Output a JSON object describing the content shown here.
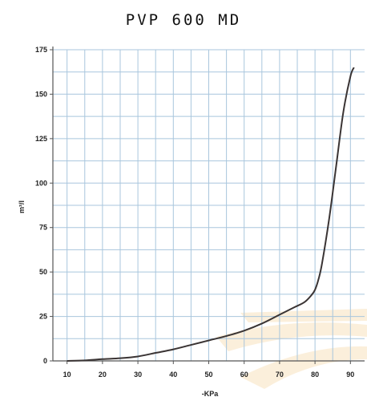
{
  "chart_data": {
    "type": "line",
    "title": "PVP 600 MD",
    "xlabel": "-KPa",
    "ylabel": "m³/l",
    "xlim": [
      6,
      94
    ],
    "ylim": [
      0,
      175
    ],
    "x_ticks": [
      10,
      20,
      30,
      40,
      50,
      60,
      70,
      80,
      90
    ],
    "x_tick_labels": [
      "10",
      "20",
      "30",
      "40",
      "50",
      "60",
      "70",
      "80",
      "90"
    ],
    "y_ticks": [
      0,
      25,
      50,
      75,
      100,
      125,
      150,
      175
    ],
    "y_tick_labels": [
      "0",
      "25",
      "50",
      "75",
      "100",
      "125",
      "150",
      "175"
    ],
    "grid": true,
    "colors": {
      "grid": "#a9c6dd",
      "line": "#3a3434",
      "axis": "#555555"
    },
    "series": [
      {
        "x": [
          10,
          15,
          20,
          25,
          30,
          35,
          40,
          45,
          50,
          55,
          60,
          65,
          70,
          74,
          77,
          79,
          80,
          81,
          82,
          84,
          86,
          88,
          90,
          91
        ],
        "values": [
          0,
          0.3,
          1,
          1.5,
          2.5,
          4.5,
          6.5,
          9,
          11.5,
          14,
          17,
          21,
          26,
          30,
          33,
          37,
          40,
          46,
          55,
          80,
          110,
          140,
          160,
          165
        ]
      }
    ]
  }
}
